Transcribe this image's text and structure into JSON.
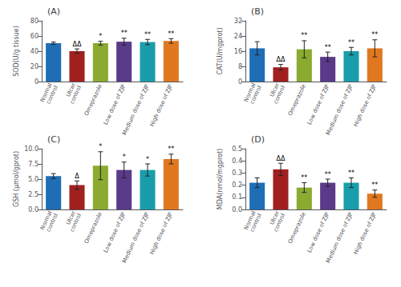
{
  "chart_data": [
    {
      "type": "bar",
      "title": "(A)",
      "ylabel": "SOD(U/g tissue)",
      "categories": [
        "Normal\ncontrol",
        "Ulcer\ncontrol",
        "Omeprazole",
        "Low dose of ZJP",
        "Medium dose of ZJP",
        "High dose of ZJP"
      ],
      "colors": [
        "#1f6eb5",
        "#a02020",
        "#8aab30",
        "#5b3a8a",
        "#1a9dab",
        "#e07820"
      ],
      "values": [
        50.5,
        40.0,
        50.5,
        52.5,
        52.0,
        53.5
      ],
      "errors": [
        1.5,
        3.0,
        2.5,
        4.5,
        3.5,
        3.0
      ],
      "sig_labels": [
        null,
        "ΔΔ",
        "*",
        "**",
        "**",
        "**"
      ],
      "ylim": [
        0,
        80
      ],
      "yticks": [
        0,
        20,
        40,
        60,
        80
      ],
      "grid": false
    },
    {
      "type": "bar",
      "title": "(B)",
      "ylabel": "CAT(U/mgprot)",
      "categories": [
        "Normal\ncontrol",
        "Ulcer\ncontrol",
        "Omeprazole",
        "Low dose of ZJP",
        "Medium dose of ZJP",
        "High dose of ZJP"
      ],
      "colors": [
        "#1f6eb5",
        "#a02020",
        "#8aab30",
        "#5b3a8a",
        "#1a9dab",
        "#e07820"
      ],
      "values": [
        17.5,
        7.5,
        17.0,
        13.0,
        16.0,
        17.5
      ],
      "errors": [
        3.5,
        1.5,
        4.5,
        2.5,
        2.0,
        4.5
      ],
      "sig_labels": [
        null,
        "ΔΔ",
        "**",
        "**",
        "**",
        "**"
      ],
      "ylim": [
        0,
        32
      ],
      "yticks": [
        0,
        8,
        16,
        24,
        32
      ],
      "grid": false
    },
    {
      "type": "bar",
      "title": "(C)",
      "ylabel": "GSH (μmol/gprot)",
      "categories": [
        "Normal\ncontrol",
        "Ulcer\ncontrol",
        "Omeprazole",
        "Low dose of ZJP",
        "Medium dose of ZJP",
        "High dose of ZJP"
      ],
      "colors": [
        "#1f6eb5",
        "#a02020",
        "#8aab30",
        "#5b3a8a",
        "#1a9dab",
        "#e07820"
      ],
      "values": [
        5.5,
        4.0,
        7.2,
        6.5,
        6.5,
        8.3
      ],
      "errors": [
        0.4,
        0.7,
        2.3,
        1.3,
        1.0,
        0.8
      ],
      "sig_labels": [
        null,
        "Δ",
        "*",
        "*",
        "*",
        "**"
      ],
      "ylim": [
        0,
        10
      ],
      "yticks": [
        {
          "value": 0,
          "label": "0.0"
        },
        2.5,
        {
          "value": 5,
          "label": "5.0"
        },
        7.5,
        {
          "value": 10,
          "label": "10.0"
        }
      ],
      "grid": false
    },
    {
      "type": "bar",
      "title": "(D)",
      "ylabel": "MDA(nmol/mgprot)",
      "categories": [
        "Normal\ncontrol",
        "Ulcer\ncontrol",
        "Omeprazole",
        "Low dose of ZJP",
        "Medium dose of ZJP",
        "High dose of ZJP"
      ],
      "colors": [
        "#1f6eb5",
        "#a02020",
        "#8aab30",
        "#5b3a8a",
        "#1a9dab",
        "#e07820"
      ],
      "values": [
        0.22,
        0.33,
        0.18,
        0.22,
        0.22,
        0.13
      ],
      "errors": [
        0.04,
        0.05,
        0.04,
        0.03,
        0.04,
        0.03
      ],
      "sig_labels": [
        null,
        "ΔΔ",
        "**",
        "**",
        "**",
        "**"
      ],
      "ylim": [
        0,
        0.5
      ],
      "yticks": [
        {
          "value": 0,
          "label": "0.0"
        },
        0.1,
        0.2,
        0.3,
        0.4,
        0.5
      ],
      "grid": false
    }
  ]
}
